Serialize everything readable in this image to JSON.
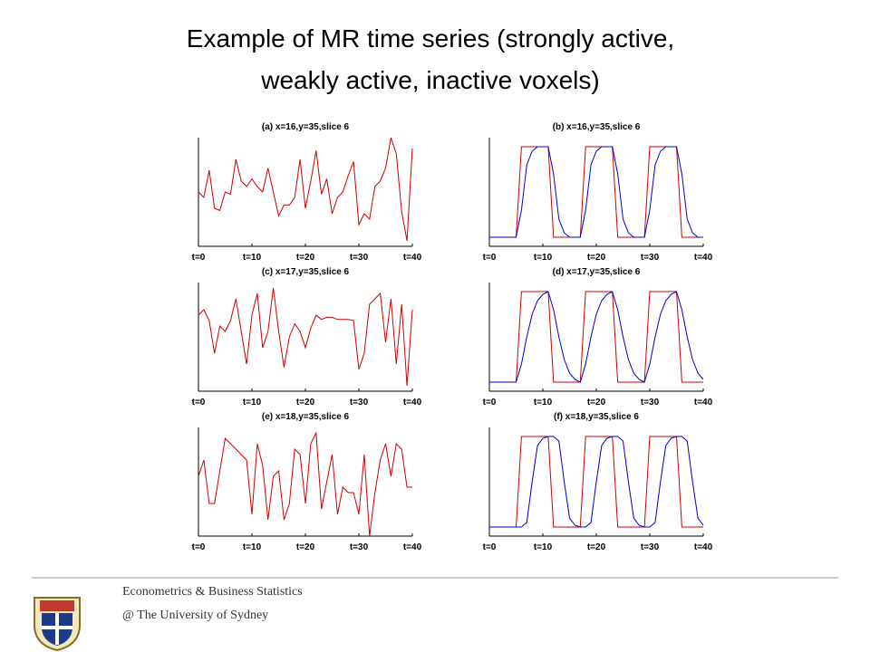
{
  "title": [
    "Example of MR time series (strongly active,",
    "weakly active, inactive voxels)"
  ],
  "footer": [
    "Econometrics & Business Statistics",
    "@ The University of Sydney"
  ],
  "chart_data": [
    {
      "type": "line",
      "title": "(a) x=16,y=35,slice 6",
      "x": [
        0,
        1,
        2,
        3,
        4,
        5,
        6,
        7,
        8,
        9,
        10,
        11,
        12,
        13,
        14,
        15,
        16,
        17,
        18,
        19,
        20,
        21,
        22,
        23,
        24,
        25,
        26,
        27,
        28,
        29,
        30,
        31,
        32,
        33,
        34,
        35,
        36,
        37,
        38,
        39,
        40
      ],
      "series": [
        {
          "color": "#cc0000",
          "values": [
            0.5,
            0.45,
            0.7,
            0.35,
            0.33,
            0.5,
            0.48,
            0.8,
            0.6,
            0.55,
            0.62,
            0.55,
            0.5,
            0.72,
            0.5,
            0.28,
            0.38,
            0.38,
            0.45,
            0.8,
            0.35,
            0.6,
            0.88,
            0.48,
            0.62,
            0.3,
            0.45,
            0.5,
            0.65,
            0.78,
            0.2,
            0.3,
            0.25,
            0.55,
            0.6,
            0.72,
            1.0,
            0.85,
            0.32,
            0.05,
            0.9
          ]
        }
      ],
      "xlim": [
        0,
        40
      ],
      "ylim": [
        0,
        1
      ],
      "xticks": [
        {
          "value": 0,
          "label": "t=0"
        },
        {
          "value": 10,
          "label": "t=10"
        },
        {
          "value": 20,
          "label": "t=20"
        },
        {
          "value": 30,
          "label": "t=30"
        },
        {
          "value": 40,
          "label": "t=40"
        }
      ]
    },
    {
      "type": "line",
      "title": "(b) x=16,y=35,slice 6",
      "x": [
        0,
        1,
        2,
        3,
        4,
        5,
        6,
        7,
        8,
        9,
        10,
        11,
        12,
        13,
        14,
        15,
        16,
        17,
        18,
        19,
        20,
        21,
        22,
        23,
        24,
        25,
        26,
        27,
        28,
        29,
        30,
        31,
        32,
        33,
        34,
        35,
        36,
        37,
        38,
        39,
        40
      ],
      "series": [
        {
          "color": "#cc0000",
          "values": [
            0,
            0,
            0,
            0,
            0,
            0,
            1,
            1,
            1,
            1,
            1,
            1,
            0,
            0,
            0,
            0,
            0,
            0,
            1,
            1,
            1,
            1,
            1,
            1,
            0,
            0,
            0,
            0,
            0,
            0,
            1,
            1,
            1,
            1,
            1,
            1,
            0,
            0,
            0,
            0,
            0
          ]
        },
        {
          "color": "#0000cc",
          "values": [
            0,
            0,
            0,
            0,
            0,
            0,
            0.3,
            0.8,
            0.95,
            1,
            1,
            1,
            0.7,
            0.2,
            0.05,
            0,
            0,
            0,
            0.3,
            0.8,
            0.95,
            1,
            1,
            1,
            0.7,
            0.2,
            0.05,
            0,
            0,
            0,
            0.3,
            0.8,
            0.95,
            1,
            1,
            1,
            0.7,
            0.2,
            0.05,
            0,
            0
          ]
        }
      ],
      "xlim": [
        0,
        40
      ],
      "ylim": [
        -0.1,
        1.1
      ],
      "xticks": [
        {
          "value": 0,
          "label": "t=0"
        },
        {
          "value": 10,
          "label": "t=10"
        },
        {
          "value": 20,
          "label": "t=20"
        },
        {
          "value": 30,
          "label": "t=30"
        },
        {
          "value": 40,
          "label": "t=40"
        }
      ]
    },
    {
      "type": "line",
      "title": "(c) x=17,y=35,slice 6",
      "x": [
        0,
        1,
        2,
        3,
        4,
        5,
        6,
        7,
        8,
        9,
        10,
        11,
        12,
        13,
        14,
        15,
        16,
        17,
        18,
        19,
        20,
        21,
        22,
        23,
        24,
        25,
        26,
        27,
        28,
        29,
        30,
        31,
        32,
        33,
        34,
        35,
        36,
        37,
        38,
        39,
        40
      ],
      "series": [
        {
          "color": "#cc0000",
          "values": [
            0.7,
            0.75,
            0.65,
            0.35,
            0.6,
            0.55,
            0.65,
            0.85,
            0.55,
            0.25,
            0.7,
            0.9,
            0.4,
            0.55,
            0.95,
            0.55,
            0.22,
            0.5,
            0.62,
            0.55,
            0.4,
            0.58,
            0.7,
            0.66,
            0.68,
            0.68,
            0.66,
            0.66,
            0.66,
            0.65,
            0.2,
            0.35,
            0.8,
            0.85,
            0.9,
            0.45,
            0.85,
            0.25,
            0.8,
            0.05,
            0.75
          ]
        }
      ],
      "xlim": [
        0,
        40
      ],
      "ylim": [
        0,
        1
      ],
      "xticks": [
        {
          "value": 0,
          "label": "t=0"
        },
        {
          "value": 10,
          "label": "t=10"
        },
        {
          "value": 20,
          "label": "t=20"
        },
        {
          "value": 30,
          "label": "t=30"
        },
        {
          "value": 40,
          "label": "t=40"
        }
      ]
    },
    {
      "type": "line",
      "title": "(d) x=17,y=35,slice 6",
      "x": [
        0,
        1,
        2,
        3,
        4,
        5,
        6,
        7,
        8,
        9,
        10,
        11,
        12,
        13,
        14,
        15,
        16,
        17,
        18,
        19,
        20,
        21,
        22,
        23,
        24,
        25,
        26,
        27,
        28,
        29,
        30,
        31,
        32,
        33,
        34,
        35,
        36,
        37,
        38,
        39,
        40
      ],
      "series": [
        {
          "color": "#cc0000",
          "values": [
            0,
            0,
            0,
            0,
            0,
            0,
            1,
            1,
            1,
            1,
            1,
            1,
            0,
            0,
            0,
            0,
            0,
            0,
            1,
            1,
            1,
            1,
            1,
            1,
            0,
            0,
            0,
            0,
            0,
            0,
            1,
            1,
            1,
            1,
            1,
            1,
            0,
            0,
            0,
            0,
            0
          ]
        },
        {
          "color": "#0000cc",
          "values": [
            0,
            0,
            0,
            0,
            0,
            0,
            0.2,
            0.5,
            0.75,
            0.9,
            0.97,
            1,
            0.8,
            0.5,
            0.25,
            0.1,
            0.03,
            0,
            0.2,
            0.5,
            0.75,
            0.9,
            0.97,
            1,
            0.8,
            0.5,
            0.25,
            0.1,
            0.03,
            0,
            0.2,
            0.5,
            0.75,
            0.9,
            0.97,
            1,
            0.8,
            0.5,
            0.25,
            0.1,
            0.03
          ]
        }
      ],
      "xlim": [
        0,
        40
      ],
      "ylim": [
        -0.1,
        1.1
      ],
      "xticks": [
        {
          "value": 0,
          "label": "t=0"
        },
        {
          "value": 10,
          "label": "t=10"
        },
        {
          "value": 20,
          "label": "t=20"
        },
        {
          "value": 30,
          "label": "t=30"
        },
        {
          "value": 40,
          "label": "t=40"
        }
      ]
    },
    {
      "type": "line",
      "title": "(e) x=18,y=35,slice 6",
      "x": [
        0,
        1,
        2,
        3,
        4,
        5,
        6,
        7,
        8,
        9,
        10,
        11,
        12,
        13,
        14,
        15,
        16,
        17,
        18,
        19,
        20,
        21,
        22,
        23,
        24,
        25,
        26,
        27,
        28,
        29,
        30,
        31,
        32,
        33,
        34,
        35,
        36,
        37,
        38,
        39,
        40
      ],
      "series": [
        {
          "color": "#cc0000",
          "values": [
            0.55,
            0.7,
            0.3,
            0.3,
            0.6,
            0.9,
            0.85,
            0.8,
            0.75,
            0.7,
            0.2,
            0.85,
            0.65,
            0.15,
            0.55,
            0.6,
            0.15,
            0.3,
            0.8,
            0.75,
            0.3,
            0.85,
            0.95,
            0.25,
            0.5,
            0.75,
            0.2,
            0.45,
            0.4,
            0.4,
            0.2,
            0.75,
            0.0,
            0.4,
            0.7,
            0.85,
            0.55,
            0.85,
            0.8,
            0.45,
            0.45
          ]
        }
      ],
      "xlim": [
        0,
        40
      ],
      "ylim": [
        0,
        1
      ],
      "xticks": [
        {
          "value": 0,
          "label": "t=0"
        },
        {
          "value": 10,
          "label": "t=10"
        },
        {
          "value": 20,
          "label": "t=20"
        },
        {
          "value": 30,
          "label": "t=30"
        },
        {
          "value": 40,
          "label": "t=40"
        }
      ]
    },
    {
      "type": "line",
      "title": "(f) x=18,y=35,slice 6",
      "x": [
        0,
        1,
        2,
        3,
        4,
        5,
        6,
        7,
        8,
        9,
        10,
        11,
        12,
        13,
        14,
        15,
        16,
        17,
        18,
        19,
        20,
        21,
        22,
        23,
        24,
        25,
        26,
        27,
        28,
        29,
        30,
        31,
        32,
        33,
        34,
        35,
        36,
        37,
        38,
        39,
        40
      ],
      "series": [
        {
          "color": "#cc0000",
          "values": [
            0,
            0,
            0,
            0,
            0,
            0,
            1,
            1,
            1,
            1,
            1,
            1,
            0,
            0,
            0,
            0,
            0,
            0,
            1,
            1,
            1,
            1,
            1,
            1,
            0,
            0,
            0,
            0,
            0,
            0,
            1,
            1,
            1,
            1,
            1,
            1,
            0,
            0,
            0,
            0,
            0
          ]
        },
        {
          "color": "#0000cc",
          "values": [
            0,
            0,
            0,
            0,
            0,
            0,
            0,
            0.05,
            0.5,
            0.9,
            0.98,
            1,
            1,
            0.95,
            0.5,
            0.1,
            0.02,
            0,
            0,
            0.05,
            0.5,
            0.9,
            0.98,
            1,
            1,
            0.95,
            0.5,
            0.1,
            0.02,
            0,
            0,
            0.05,
            0.5,
            0.9,
            0.98,
            1,
            1,
            0.95,
            0.5,
            0.1,
            0.02
          ]
        }
      ],
      "xlim": [
        0,
        40
      ],
      "ylim": [
        -0.1,
        1.1
      ],
      "xticks": [
        {
          "value": 0,
          "label": "t=0"
        },
        {
          "value": 10,
          "label": "t=10"
        },
        {
          "value": 20,
          "label": "t=20"
        },
        {
          "value": 30,
          "label": "t=30"
        },
        {
          "value": 40,
          "label": "t=40"
        }
      ]
    }
  ]
}
